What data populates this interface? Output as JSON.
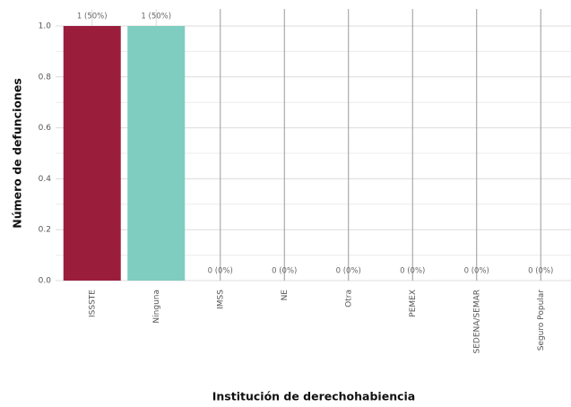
{
  "chart_data": {
    "type": "bar",
    "categories": [
      "ISSSTE",
      "Ninguna",
      "IMSS",
      "NE",
      "Otra",
      "PEMEX",
      "SEDENA/SEMAR",
      "Seguro Popular"
    ],
    "values": [
      1,
      1,
      0,
      0,
      0,
      0,
      0,
      0
    ],
    "value_labels": [
      "1 (50%)",
      "1 (50%)",
      "0 (0%)",
      "0 (0%)",
      "0 (0%)",
      "0 (0%)",
      "0 (0%)",
      "0 (0%)"
    ],
    "colors": [
      "#9b1d3c",
      "#7ecdc0"
    ],
    "xlabel": "Institución de derechohabiencia",
    "ylabel": "Número de defunciones",
    "ylim": [
      0,
      1
    ],
    "yticks": [
      {
        "value": 0,
        "label": "0.0"
      },
      {
        "value": 0.2,
        "label": "0.2"
      },
      {
        "value": 0.4,
        "label": "0.4"
      },
      {
        "value": 0.6,
        "label": "0.6"
      },
      {
        "value": 0.8,
        "label": "0.8"
      },
      {
        "value": 1,
        "label": "1.0"
      }
    ],
    "grid": true
  }
}
